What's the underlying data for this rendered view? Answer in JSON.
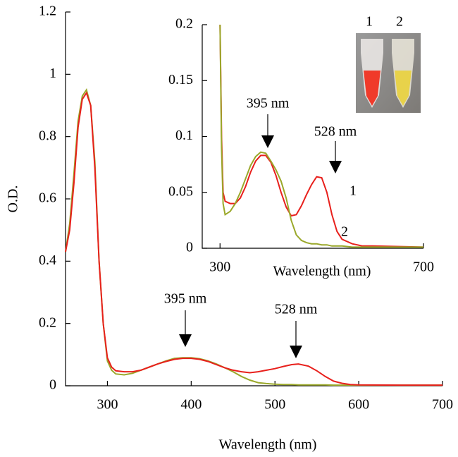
{
  "chart_data": [
    {
      "type": "line",
      "xlabel": "Wavelength (nm)",
      "ylabel": "O.D.",
      "x": [
        250,
        255,
        260,
        265,
        270,
        275,
        280,
        285,
        290,
        295,
        300,
        305,
        310,
        320,
        330,
        340,
        350,
        360,
        370,
        380,
        390,
        400,
        410,
        420,
        430,
        440,
        450,
        460,
        470,
        480,
        490,
        500,
        510,
        520,
        528,
        540,
        550,
        560,
        570,
        580,
        590,
        600,
        650,
        700
      ],
      "series": [
        {
          "color": "#9aa82a",
          "values": [
            0.43,
            0.52,
            0.68,
            0.85,
            0.93,
            0.95,
            0.9,
            0.72,
            0.4,
            0.2,
            0.08,
            0.05,
            0.038,
            0.035,
            0.04,
            0.05,
            0.06,
            0.07,
            0.08,
            0.088,
            0.09,
            0.09,
            0.087,
            0.08,
            0.07,
            0.058,
            0.045,
            0.03,
            0.018,
            0.01,
            0.007,
            0.005,
            0.004,
            0.004,
            0.003,
            0.003,
            0.003,
            0.003,
            0.002,
            0.002,
            0.002,
            0.002,
            0.002,
            0.002
          ]
        },
        {
          "color": "#e8201c",
          "values": [
            0.43,
            0.5,
            0.65,
            0.83,
            0.92,
            0.94,
            0.9,
            0.7,
            0.4,
            0.2,
            0.09,
            0.06,
            0.048,
            0.045,
            0.045,
            0.05,
            0.06,
            0.07,
            0.078,
            0.085,
            0.088,
            0.088,
            0.085,
            0.078,
            0.068,
            0.058,
            0.05,
            0.045,
            0.042,
            0.045,
            0.05,
            0.055,
            0.062,
            0.068,
            0.07,
            0.063,
            0.048,
            0.03,
            0.015,
            0.008,
            0.004,
            0.003,
            0.002,
            0.002
          ]
        }
      ],
      "xlim": [
        250,
        700
      ],
      "xticks": [
        300,
        400,
        500,
        600,
        700
      ],
      "ylim": [
        0,
        1.2
      ],
      "yticks": [
        0,
        0.2,
        0.4,
        0.6,
        0.8,
        1,
        1.2
      ],
      "annotations": [
        "395 nm",
        "528 nm"
      ]
    },
    {
      "type": "line",
      "xlabel": "Wavelength (nm)",
      "x": [
        300,
        303,
        306,
        310,
        320,
        330,
        340,
        350,
        360,
        370,
        380,
        390,
        400,
        410,
        420,
        430,
        440,
        450,
        460,
        470,
        480,
        490,
        500,
        510,
        520,
        530,
        540,
        560,
        580,
        600,
        700
      ],
      "series": [
        {
          "name": "1",
          "color": "#e8201c",
          "values": [
            0.2,
            0.1,
            0.05,
            0.042,
            0.04,
            0.04,
            0.045,
            0.055,
            0.068,
            0.078,
            0.083,
            0.083,
            0.077,
            0.065,
            0.05,
            0.037,
            0.029,
            0.03,
            0.038,
            0.048,
            0.057,
            0.064,
            0.063,
            0.05,
            0.03,
            0.015,
            0.008,
            0.004,
            0.002,
            0.002,
            0.001
          ]
        },
        {
          "name": "2",
          "color": "#9aa82a",
          "values": [
            0.2,
            0.09,
            0.04,
            0.03,
            0.033,
            0.04,
            0.05,
            0.062,
            0.074,
            0.082,
            0.086,
            0.085,
            0.078,
            0.07,
            0.06,
            0.045,
            0.025,
            0.012,
            0.007,
            0.005,
            0.004,
            0.004,
            0.003,
            0.003,
            0.002,
            0.002,
            0.002,
            0.001,
            0.001,
            0.001,
            0.001
          ]
        }
      ],
      "xlim": [
        265,
        700
      ],
      "xticks": [
        300,
        700
      ],
      "ylim": [
        0,
        0.2
      ],
      "yticks": [
        0,
        0.05,
        0.1,
        0.15,
        0.2
      ],
      "annotations": [
        "395 nm",
        "528 nm"
      ]
    }
  ]
}
